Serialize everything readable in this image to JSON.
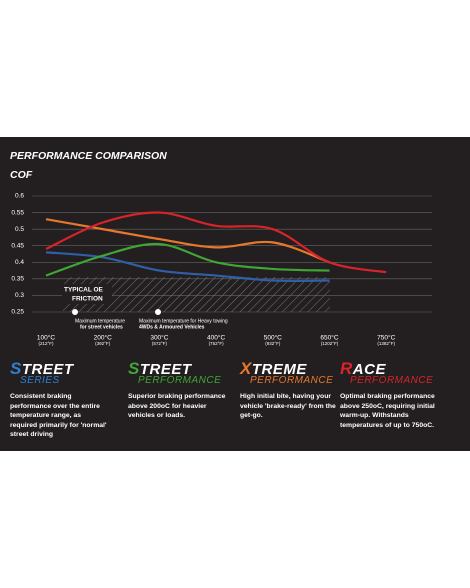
{
  "chart_data": {
    "type": "line",
    "title": "PERFORMANCE COMPARISON",
    "y_label": "COF",
    "categories": [
      "100°C",
      "200°C",
      "300°C",
      "400°C",
      "500°C",
      "650°C",
      "750°C"
    ],
    "categories_f": [
      "(212°F)",
      "(392°F)",
      "(572°F)",
      "(752°F)",
      "(932°F)",
      "(1202°F)",
      "(1382°F)"
    ],
    "series": [
      {
        "color": "#2f5fa8",
        "values": [
          0.43,
          0.415,
          0.375,
          0.36,
          0.345,
          0.345,
          null
        ]
      },
      {
        "color": "#3fa535",
        "values": [
          0.36,
          0.42,
          0.455,
          0.4,
          0.38,
          0.375,
          null
        ]
      },
      {
        "color": "#e8772e",
        "values": [
          0.53,
          0.5,
          0.47,
          0.445,
          0.46,
          0.4,
          null
        ]
      },
      {
        "color": "#d8232a",
        "values": [
          0.44,
          0.52,
          0.55,
          0.51,
          0.5,
          0.4,
          0.37
        ]
      }
    ],
    "ylim": [
      0.25,
      0.6
    ],
    "yticks": [
      0.6,
      0.55,
      0.5,
      0.45,
      0.4,
      0.35,
      0.3,
      0.25
    ],
    "grid": true,
    "friction_label": [
      "TYPICAL OE",
      "FRICTION"
    ],
    "notes": [
      {
        "lines": [
          "Maximum temperature",
          "for street vehicles"
        ]
      },
      {
        "lines": [
          "Maximum temperature for Heavy towing",
          "4WDs & Armoured Vehicles"
        ]
      }
    ]
  },
  "products": [
    {
      "name": "STREET",
      "sub": "SERIES",
      "color": "#2f7fd0",
      "text": "Consistent braking performance over the entire temperature range, as required primarily for 'normal' street driving"
    },
    {
      "name": "STREET",
      "sub": "PERFORMANCE",
      "color": "#3fa535",
      "text": "Superior braking performance above 200oC for heavier vehicles or loads."
    },
    {
      "name": "XTREME",
      "sub": "PERFORMANCE",
      "color": "#e8772e",
      "text": "High initial bite, having your vehicle 'brake-ready' from the get-go."
    },
    {
      "name": "RACE",
      "sub": "PERFORMANCE",
      "color": "#d8232a",
      "text": "Optimal braking performance above 250oC, requiring initial warm-up. Withstands temperatures of up to 750oC."
    }
  ]
}
